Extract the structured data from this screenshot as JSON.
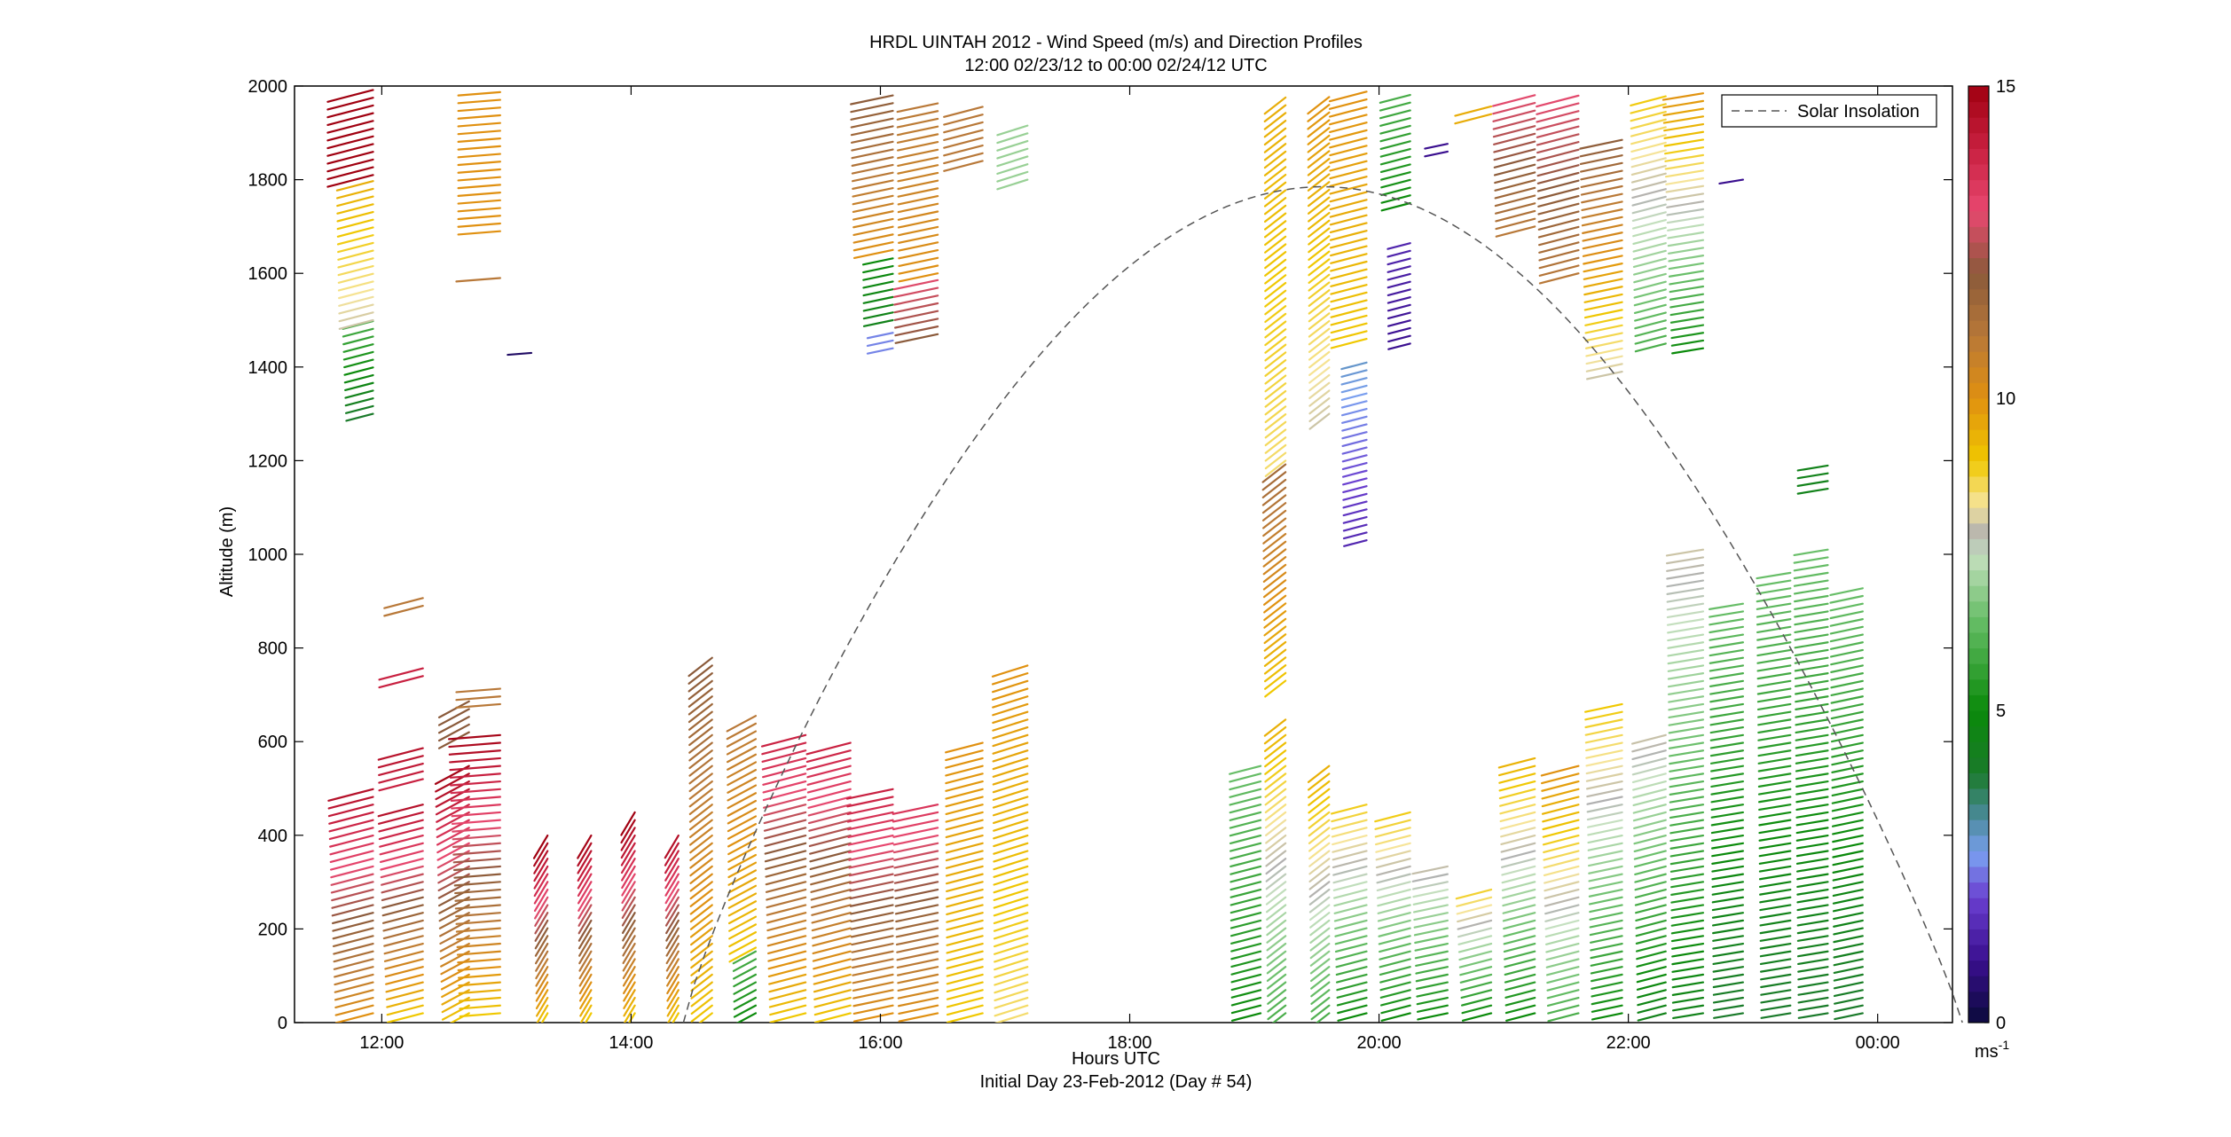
{
  "chart_data": {
    "type": "wind-barb-profile",
    "title": "HRDL UINTAH 2012 - Wind Speed (m/s) and Direction Profiles",
    "subtitle": "12:00 02/23/12 to 00:00 02/24/12  UTC",
    "xlabel": "Hours UTC",
    "xlabel2": "Initial Day 23-Feb-2012 (Day # 54)",
    "ylabel": "Altitude (m)",
    "xlim": [
      11.3,
      24.6
    ],
    "ylim": [
      0,
      2000
    ],
    "x_ticks": [
      {
        "value": 12,
        "label": "12:00"
      },
      {
        "value": 14,
        "label": "14:00"
      },
      {
        "value": 16,
        "label": "16:00"
      },
      {
        "value": 18,
        "label": "18:00"
      },
      {
        "value": 20,
        "label": "20:00"
      },
      {
        "value": 22,
        "label": "22:00"
      },
      {
        "value": 24,
        "label": "00:00"
      }
    ],
    "y_ticks": [
      {
        "value": 0,
        "label": "0"
      },
      {
        "value": 200,
        "label": "200"
      },
      {
        "value": 400,
        "label": "400"
      },
      {
        "value": 600,
        "label": "600"
      },
      {
        "value": 800,
        "label": "800"
      },
      {
        "value": 1000,
        "label": "1000"
      },
      {
        "value": 1200,
        "label": "1200"
      },
      {
        "value": 1400,
        "label": "1400"
      },
      {
        "value": 1600,
        "label": "1600"
      },
      {
        "value": 1800,
        "label": "1800"
      },
      {
        "value": 2000,
        "label": "2000"
      }
    ],
    "legend": {
      "position": "top-right",
      "entries": [
        {
          "label": "Solar Insolation",
          "style": "dashed",
          "color": "#555555"
        }
      ]
    },
    "colorbar": {
      "range": [
        0,
        15
      ],
      "ticks": [
        {
          "value": 0,
          "label": "0"
        },
        {
          "value": 5,
          "label": "5"
        },
        {
          "value": 10,
          "label": "10"
        },
        {
          "value": 15,
          "label": "15"
        }
      ],
      "unit_base": "ms",
      "unit_exp": "-1",
      "stops": [
        {
          "v": 0,
          "color": "#0a0a3a"
        },
        {
          "v": 1,
          "color": "#3a0f8f"
        },
        {
          "v": 2,
          "color": "#6a3fd0"
        },
        {
          "v": 2.7,
          "color": "#7a9ff0"
        },
        {
          "v": 3.3,
          "color": "#4a8a9a"
        },
        {
          "v": 4,
          "color": "#1a7a2a"
        },
        {
          "v": 5,
          "color": "#0a8a0a"
        },
        {
          "v": 6.5,
          "color": "#6abf6a"
        },
        {
          "v": 7.5,
          "color": "#c6e0c0"
        },
        {
          "v": 7.8,
          "color": "#b0b0b0"
        },
        {
          "v": 8.3,
          "color": "#f6e49a"
        },
        {
          "v": 9,
          "color": "#f0c800"
        },
        {
          "v": 10,
          "color": "#e09010"
        },
        {
          "v": 11,
          "color": "#b87838"
        },
        {
          "v": 12,
          "color": "#8a5a3a"
        },
        {
          "v": 13,
          "color": "#e84870"
        },
        {
          "v": 14,
          "color": "#c82040"
        },
        {
          "v": 15,
          "color": "#a00010"
        }
      ]
    },
    "solar_insolation": {
      "peak_time": 19.55,
      "peak_altitude": 1785,
      "start_time": 14.42,
      "end_time": 24.68
    },
    "wind_profiles": [
      {
        "time": 11.93,
        "bands": [
          {
            "bottom": 20,
            "top": 500,
            "speed": [
              10,
              14.5
            ]
          },
          {
            "bottom": 1300,
            "top": 1500,
            "speed": [
              4,
              6
            ]
          },
          {
            "bottom": 1500,
            "top": 1800,
            "speed": [
              8,
              9.5
            ]
          },
          {
            "bottom": 1810,
            "top": 1995,
            "speed": [
              15,
              15
            ]
          }
        ],
        "direction": 300
      },
      {
        "time": 12.33,
        "bands": [
          {
            "bottom": 20,
            "top": 470,
            "speed": [
              9,
              14.5
            ]
          },
          {
            "bottom": 520,
            "top": 600,
            "speed": [
              14,
              14.5
            ]
          },
          {
            "bottom": 740,
            "top": 770,
            "speed": [
              14,
              14
            ]
          },
          {
            "bottom": 890,
            "top": 915,
            "speed": [
              11,
              11
            ]
          }
        ],
        "direction": 300
      },
      {
        "time": 12.7,
        "bands": [
          {
            "bottom": 20,
            "top": 560,
            "speed": [
              9,
              15
            ]
          },
          {
            "bottom": 620,
            "top": 700,
            "speed": [
              12,
              12
            ]
          }
        ],
        "direction": 320
      },
      {
        "time": 12.95,
        "bands": [
          {
            "bottom": 20,
            "top": 630,
            "speed": [
              9,
              15
            ]
          },
          {
            "bottom": 680,
            "top": 720,
            "speed": [
              11,
              11
            ]
          },
          {
            "bottom": 1590,
            "top": 1600,
            "speed": [
              11,
              11
            ]
          },
          {
            "bottom": 1690,
            "top": 1990,
            "speed": [
              10,
              10
            ]
          }
        ],
        "direction": 280
      },
      {
        "time": 13.2,
        "bands": [
          {
            "bottom": 1430,
            "top": 1440,
            "speed": [
              0.5,
              0.5
            ]
          }
        ],
        "direction": 280
      },
      {
        "time": 13.33,
        "bands": [
          {
            "bottom": 20,
            "top": 400,
            "speed": [
              9,
              15
            ]
          }
        ],
        "direction": 345
      },
      {
        "time": 13.68,
        "bands": [
          {
            "bottom": 20,
            "top": 410,
            "speed": [
              9,
              15
            ]
          }
        ],
        "direction": 345
      },
      {
        "time": 14.03,
        "bands": [
          {
            "bottom": 20,
            "top": 450,
            "speed": [
              9,
              15
            ]
          }
        ],
        "direction": 345
      },
      {
        "time": 14.38,
        "bands": [
          {
            "bottom": 20,
            "top": 400,
            "speed": [
              9,
              14.5
            ]
          }
        ],
        "direction": 345
      },
      {
        "time": 14.65,
        "bands": [
          {
            "bottom": 20,
            "top": 780,
            "speed": [
              9,
              12
            ]
          }
        ],
        "direction": 330
      },
      {
        "time": 15.0,
        "bands": [
          {
            "bottom": 20,
            "top": 160,
            "speed": [
              5,
              6
            ]
          },
          {
            "bottom": 160,
            "top": 660,
            "speed": [
              9,
              11
            ]
          }
        ],
        "direction": 320
      },
      {
        "time": 15.4,
        "bands": [
          {
            "bottom": 20,
            "top": 620,
            "speed": [
              9,
              14
            ]
          }
        ],
        "direction": 300
      },
      {
        "time": 15.76,
        "bands": [
          {
            "bottom": 20,
            "top": 600,
            "speed": [
              9,
              14
            ]
          }
        ],
        "direction": 300
      },
      {
        "time": 16.1,
        "bands": [
          {
            "bottom": 20,
            "top": 500,
            "speed": [
              10,
              14
            ]
          },
          {
            "bottom": 1440,
            "top": 1480,
            "speed": [
              2.5,
              2.5
            ]
          },
          {
            "bottom": 1500,
            "top": 1640,
            "speed": [
              4.5,
              5
            ]
          },
          {
            "bottom": 1650,
            "top": 1990,
            "speed": [
              10,
              12
            ]
          }
        ],
        "direction": 295
      },
      {
        "time": 16.46,
        "bands": [
          {
            "bottom": 20,
            "top": 470,
            "speed": [
              10,
              13.5
            ]
          },
          {
            "bottom": 1470,
            "top": 1600,
            "speed": [
              12,
              13
            ]
          },
          {
            "bottom": 1600,
            "top": 1970,
            "speed": [
              10,
              11
            ]
          }
        ],
        "direction": 295
      },
      {
        "time": 16.82,
        "bands": [
          {
            "bottom": 20,
            "top": 600,
            "speed": [
              9,
              10
            ]
          },
          {
            "bottom": 1840,
            "top": 1970,
            "speed": [
              11,
              11
            ]
          }
        ],
        "direction": 300
      },
      {
        "time": 17.18,
        "bands": [
          {
            "bottom": 20,
            "top": 770,
            "speed": [
              8.5,
              10
            ]
          },
          {
            "bottom": 1800,
            "top": 1930,
            "speed": [
              7,
              7
            ]
          }
        ],
        "direction": 305
      },
      {
        "time": 19.05,
        "bands": [
          {
            "bottom": 20,
            "top": 560,
            "speed": [
              5,
              6.5
            ]
          }
        ],
        "direction": 300
      },
      {
        "time": 19.25,
        "bands": [
          {
            "bottom": 20,
            "top": 660,
            "speed": [
              6,
              9.5
            ]
          },
          {
            "bottom": 730,
            "top": 1200,
            "speed": [
              9,
              11.5
            ]
          },
          {
            "bottom": 1200,
            "top": 1990,
            "speed": [
              8.5,
              9.5
            ]
          }
        ],
        "direction": 330
      },
      {
        "time": 19.6,
        "bands": [
          {
            "bottom": 20,
            "top": 560,
            "speed": [
              6,
              9.5
            ]
          },
          {
            "bottom": 1300,
            "top": 1990,
            "speed": [
              8,
              10
            ]
          }
        ],
        "direction": 330
      },
      {
        "time": 19.9,
        "bands": [
          {
            "bottom": 20,
            "top": 480,
            "speed": [
              5,
              9
            ]
          },
          {
            "bottom": 1030,
            "top": 1420,
            "speed": [
              1.5,
              3
            ]
          },
          {
            "bottom": 1460,
            "top": 1990,
            "speed": [
              9,
              10
            ]
          }
        ],
        "direction": 300
      },
      {
        "time": 20.25,
        "bands": [
          {
            "bottom": 20,
            "top": 460,
            "speed": [
              5,
              9
            ]
          },
          {
            "bottom": 1450,
            "top": 1680,
            "speed": [
              1,
              1.5
            ]
          },
          {
            "bottom": 1750,
            "top": 1990,
            "speed": [
              5,
              6
            ]
          }
        ],
        "direction": 300
      },
      {
        "time": 20.55,
        "bands": [
          {
            "bottom": 20,
            "top": 340,
            "speed": [
              5,
              8
            ]
          },
          {
            "bottom": 1860,
            "top": 1885,
            "speed": [
              1,
              1
            ]
          }
        ],
        "direction": 295
      },
      {
        "time": 20.9,
        "bands": [
          {
            "bottom": 20,
            "top": 300,
            "speed": [
              5,
              9
            ]
          },
          {
            "bottom": 1940,
            "top": 1960,
            "speed": [
              9.5,
              9.5
            ]
          }
        ],
        "direction": 300
      },
      {
        "time": 21.25,
        "bands": [
          {
            "bottom": 20,
            "top": 580,
            "speed": [
              5,
              9.5
            ]
          },
          {
            "bottom": 1700,
            "top": 1990,
            "speed": [
              11,
              13
            ]
          }
        ],
        "direction": 300
      },
      {
        "time": 21.6,
        "bands": [
          {
            "bottom": 20,
            "top": 550,
            "speed": [
              6,
              10
            ]
          },
          {
            "bottom": 1600,
            "top": 1990,
            "speed": [
              11,
              13
            ]
          }
        ],
        "direction": 300
      },
      {
        "time": 21.95,
        "bands": [
          {
            "bottom": 20,
            "top": 680,
            "speed": [
              5,
              9
            ]
          },
          {
            "bottom": 1390,
            "top": 1900,
            "speed": [
              8,
              12
            ]
          }
        ],
        "direction": 295
      },
      {
        "time": 22.3,
        "bands": [
          {
            "bottom": 20,
            "top": 620,
            "speed": [
              4.5,
              8
            ]
          },
          {
            "bottom": 1450,
            "top": 1990,
            "speed": [
              6,
              9
            ]
          }
        ],
        "direction": 300
      },
      {
        "time": 22.6,
        "bands": [
          {
            "bottom": 20,
            "top": 1010,
            "speed": [
              4.5,
              8
            ]
          },
          {
            "bottom": 1440,
            "top": 1990,
            "speed": [
              5,
              10
            ]
          }
        ],
        "direction": 290
      },
      {
        "time": 22.92,
        "bands": [
          {
            "bottom": 20,
            "top": 910,
            "speed": [
              4,
              6.5
            ]
          },
          {
            "bottom": 1800,
            "top": 1810,
            "speed": [
              1,
              1
            ]
          }
        ],
        "direction": 290
      },
      {
        "time": 23.3,
        "bands": [
          {
            "bottom": 20,
            "top": 970,
            "speed": [
              4,
              6.5
            ]
          }
        ],
        "direction": 290
      },
      {
        "time": 23.6,
        "bands": [
          {
            "bottom": 20,
            "top": 1010,
            "speed": [
              4,
              6.5
            ]
          },
          {
            "bottom": 1140,
            "top": 1200,
            "speed": [
              4.5,
              4.5
            ]
          }
        ],
        "direction": 290
      },
      {
        "time": 23.88,
        "bands": [
          {
            "bottom": 20,
            "top": 940,
            "speed": [
              4,
              6.5
            ]
          }
        ],
        "direction": 295
      }
    ]
  }
}
